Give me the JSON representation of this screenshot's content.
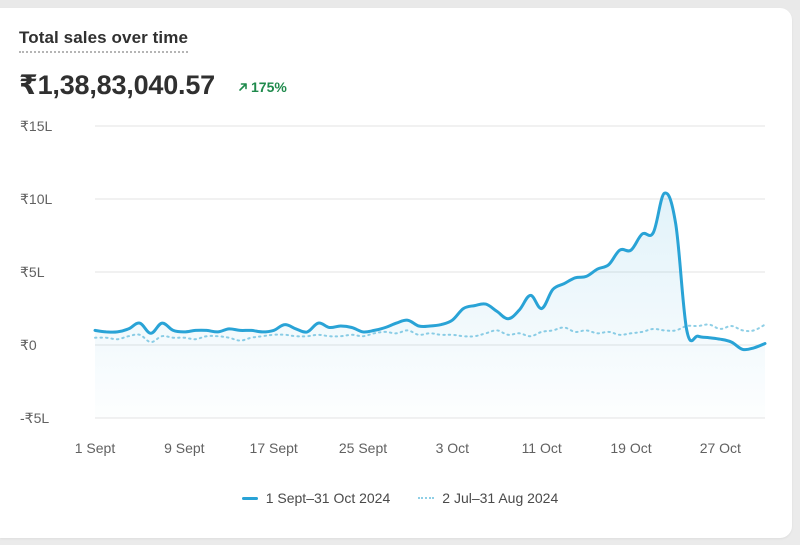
{
  "card": {
    "title": "Total sales over time",
    "total": "₹1,38,83,040.57",
    "change": "175%",
    "change_icon": "arrow-up-right-icon",
    "change_color": "#1f8a4c"
  },
  "chart_data": {
    "type": "line",
    "ylim": [
      -5,
      15
    ],
    "y_unit": "lakh INR",
    "y_ticks": [
      {
        "value": 15,
        "label": "₹15L"
      },
      {
        "value": 10,
        "label": "₹10L"
      },
      {
        "value": 5,
        "label": "₹5L"
      },
      {
        "value": 0,
        "label": "₹0"
      },
      {
        "value": -5,
        "label": "-₹5L"
      }
    ],
    "x_ticks": [
      {
        "index": 0,
        "label": "1 Sept"
      },
      {
        "index": 8,
        "label": "9 Sept"
      },
      {
        "index": 16,
        "label": "17 Sept"
      },
      {
        "index": 24,
        "label": "25 Sept"
      },
      {
        "index": 32,
        "label": "3 Oct"
      },
      {
        "index": 40,
        "label": "11 Oct"
      },
      {
        "index": 48,
        "label": "19 Oct"
      },
      {
        "index": 56,
        "label": "27 Oct"
      }
    ],
    "grid": true,
    "legend_position": "bottom-center",
    "series": [
      {
        "name": "1 Sept–31 Oct 2024",
        "style": "solid",
        "color": "#29a3d6",
        "fill": true,
        "values": [
          1.0,
          0.9,
          0.9,
          1.1,
          1.5,
          0.8,
          1.5,
          1.0,
          0.9,
          1.0,
          1.0,
          0.9,
          1.1,
          1.0,
          1.0,
          0.9,
          1.0,
          1.4,
          1.1,
          0.9,
          1.5,
          1.2,
          1.3,
          1.2,
          0.9,
          1.0,
          1.2,
          1.5,
          1.7,
          1.3,
          1.3,
          1.4,
          1.7,
          2.5,
          2.7,
          2.8,
          2.3,
          1.8,
          2.4,
          3.4,
          2.5,
          3.8,
          4.2,
          4.6,
          4.7,
          5.2,
          5.5,
          6.5,
          6.5,
          7.6,
          7.7,
          10.4,
          8.3,
          1.0,
          0.6,
          0.5,
          0.4,
          0.2,
          -0.3,
          -0.2,
          0.1
        ]
      },
      {
        "name": "2 Jul–31 Aug 2024",
        "style": "dotted",
        "color": "#8fcfe6",
        "fill": false,
        "values": [
          0.5,
          0.5,
          0.4,
          0.6,
          0.7,
          0.2,
          0.6,
          0.5,
          0.5,
          0.4,
          0.6,
          0.6,
          0.5,
          0.3,
          0.5,
          0.6,
          0.7,
          0.7,
          0.6,
          0.6,
          0.7,
          0.6,
          0.6,
          0.7,
          0.6,
          0.8,
          0.9,
          0.8,
          1.0,
          0.7,
          0.8,
          0.7,
          0.7,
          0.6,
          0.6,
          0.8,
          1.0,
          0.7,
          0.8,
          0.6,
          0.9,
          1.0,
          1.2,
          0.9,
          1.0,
          0.8,
          0.9,
          0.7,
          0.8,
          0.9,
          1.1,
          1.0,
          1.0,
          1.3,
          1.3,
          1.4,
          1.1,
          1.3,
          1.0,
          1.0,
          1.4
        ]
      }
    ]
  }
}
